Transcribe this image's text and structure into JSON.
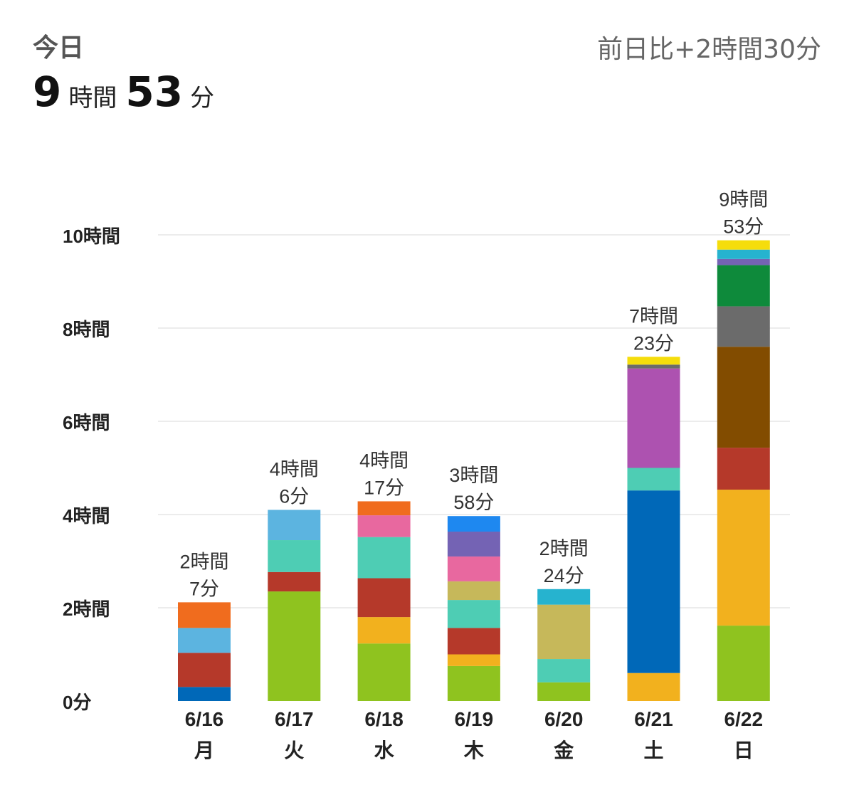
{
  "header": {
    "label": "今日",
    "hours": "9",
    "hours_unit": "時間",
    "minutes": "53",
    "minutes_unit": "分",
    "compare": "前日比+2時間30分"
  },
  "chart_data": {
    "type": "bar",
    "stacked": true,
    "unit": "minutes",
    "ylim": [
      0,
      600
    ],
    "yticks": [
      {
        "value": 0,
        "label": "0分"
      },
      {
        "value": 120,
        "label": "2時間"
      },
      {
        "value": 240,
        "label": "4時間"
      },
      {
        "value": 360,
        "label": "6時間"
      },
      {
        "value": 480,
        "label": "8時間"
      },
      {
        "value": 600,
        "label": "10時間"
      }
    ],
    "categories": [
      {
        "date": "6/16",
        "weekday": "月",
        "total_label": [
          "2時間",
          "7分"
        ],
        "total": 127,
        "segments": [
          {
            "value": 18,
            "color": "#0068b8"
          },
          {
            "value": 44,
            "color": "#b5392a"
          },
          {
            "value": 32,
            "color": "#5cb4e0"
          },
          {
            "value": 33,
            "color": "#f06c1e"
          }
        ]
      },
      {
        "date": "6/17",
        "weekday": "火",
        "total_label": [
          "4時間",
          "6分"
        ],
        "total": 246,
        "segments": [
          {
            "value": 141,
            "color": "#8fc31f"
          },
          {
            "value": 25,
            "color": "#b5392a"
          },
          {
            "value": 41,
            "color": "#4ecdb4"
          },
          {
            "value": 39,
            "color": "#5cb4e0"
          }
        ]
      },
      {
        "date": "6/18",
        "weekday": "水",
        "total_label": [
          "4時間",
          "17分"
        ],
        "total": 257,
        "segments": [
          {
            "value": 74,
            "color": "#8fc31f"
          },
          {
            "value": 34,
            "color": "#f2b11e"
          },
          {
            "value": 50,
            "color": "#b5392a"
          },
          {
            "value": 53,
            "color": "#4ecdb4"
          },
          {
            "value": 28,
            "color": "#e8689f"
          },
          {
            "value": 18,
            "color": "#f06c1e"
          }
        ]
      },
      {
        "date": "6/19",
        "weekday": "木",
        "total_label": [
          "3時間",
          "58分"
        ],
        "total": 238,
        "segments": [
          {
            "value": 45,
            "color": "#8fc31f"
          },
          {
            "value": 15,
            "color": "#f2b11e"
          },
          {
            "value": 34,
            "color": "#b5392a"
          },
          {
            "value": 36,
            "color": "#4ecdb4"
          },
          {
            "value": 24,
            "color": "#c6b85a"
          },
          {
            "value": 32,
            "color": "#e8689f"
          },
          {
            "value": 32,
            "color": "#7463b4"
          },
          {
            "value": 20,
            "color": "#1e88f0"
          }
        ]
      },
      {
        "date": "6/20",
        "weekday": "金",
        "total_label": [
          "2時間",
          "24分"
        ],
        "total": 144,
        "segments": [
          {
            "value": 24,
            "color": "#8fc31f"
          },
          {
            "value": 30,
            "color": "#4ecdb4"
          },
          {
            "value": 70,
            "color": "#c6b85a"
          },
          {
            "value": 20,
            "color": "#26b3cf"
          }
        ]
      },
      {
        "date": "6/21",
        "weekday": "土",
        "total_label": [
          "7時間",
          "23分"
        ],
        "total": 443,
        "segments": [
          {
            "value": 36,
            "color": "#f2b11e"
          },
          {
            "value": 235,
            "color": "#0068b8"
          },
          {
            "value": 29,
            "color": "#4ecdb4"
          },
          {
            "value": 128,
            "color": "#ad52b0"
          },
          {
            "value": 5,
            "color": "#6b6b6b"
          },
          {
            "value": 10,
            "color": "#f5dd0c"
          }
        ]
      },
      {
        "date": "6/22",
        "weekday": "日",
        "total_label": [
          "9時間",
          "53分"
        ],
        "total": 593,
        "segments": [
          {
            "value": 97,
            "color": "#8fc31f"
          },
          {
            "value": 175,
            "color": "#f2b11e"
          },
          {
            "value": 54,
            "color": "#b5392a"
          },
          {
            "value": 130,
            "color": "#824c00"
          },
          {
            "value": 52,
            "color": "#6b6b6b"
          },
          {
            "value": 53,
            "color": "#0e8a3b"
          },
          {
            "value": 8,
            "color": "#7463b4"
          },
          {
            "value": 12,
            "color": "#26b3cf"
          },
          {
            "value": 12,
            "color": "#f5dd0c"
          }
        ]
      }
    ]
  }
}
